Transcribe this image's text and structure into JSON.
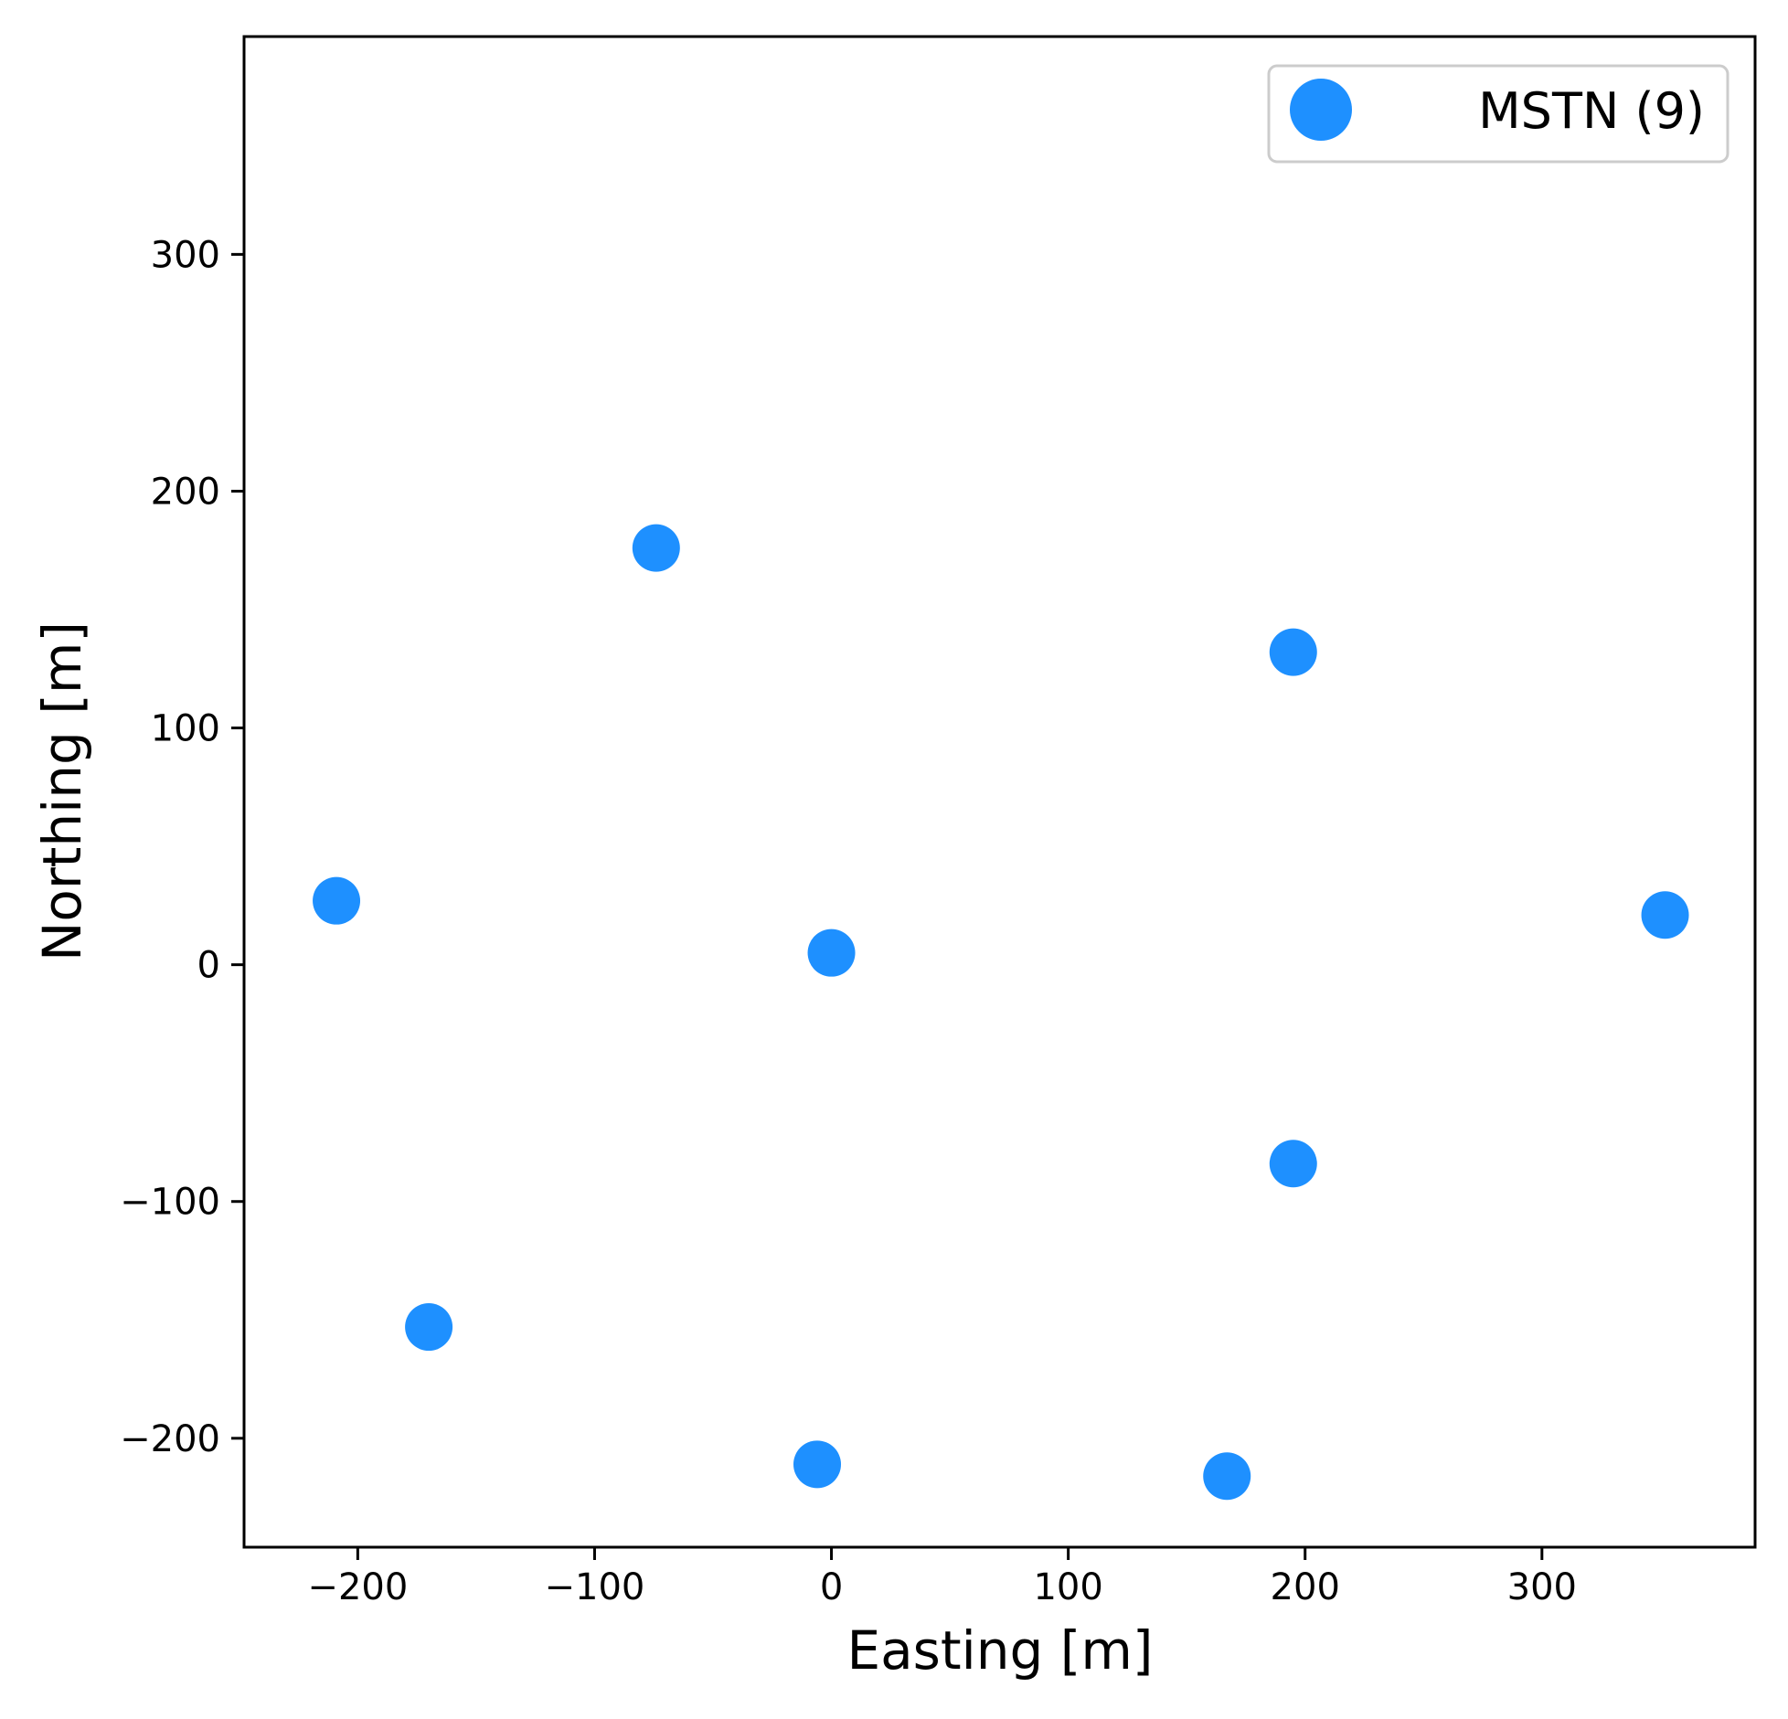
{
  "chart_data": {
    "type": "scatter",
    "title": "",
    "xlabel": "Easting [m]",
    "ylabel": "Northing [m]",
    "xlim": [
      -248,
      390
    ],
    "ylim": [
      -246,
      392
    ],
    "xticks": [
      -200,
      -100,
      0,
      100,
      200,
      300
    ],
    "yticks": [
      -200,
      -100,
      0,
      100,
      200,
      300
    ],
    "xtick_labels": [
      "−200",
      "−100",
      "0",
      "100",
      "200",
      "300"
    ],
    "ytick_labels": [
      "−200",
      "−100",
      "0",
      "100",
      "200",
      "300"
    ],
    "grid": false,
    "legend_position": "top-right",
    "series": [
      {
        "name": "MSTN (9)",
        "color": "#1e90ff",
        "marker": "circle",
        "points": [
          {
            "x": -74,
            "y": 176
          },
          {
            "x": 195,
            "y": 132
          },
          {
            "x": -209,
            "y": 27
          },
          {
            "x": 0,
            "y": 5
          },
          {
            "x": 352,
            "y": 21
          },
          {
            "x": 195,
            "y": -84
          },
          {
            "x": -170,
            "y": -153
          },
          {
            "x": -6,
            "y": -211
          },
          {
            "x": 167,
            "y": -216
          }
        ]
      }
    ]
  }
}
